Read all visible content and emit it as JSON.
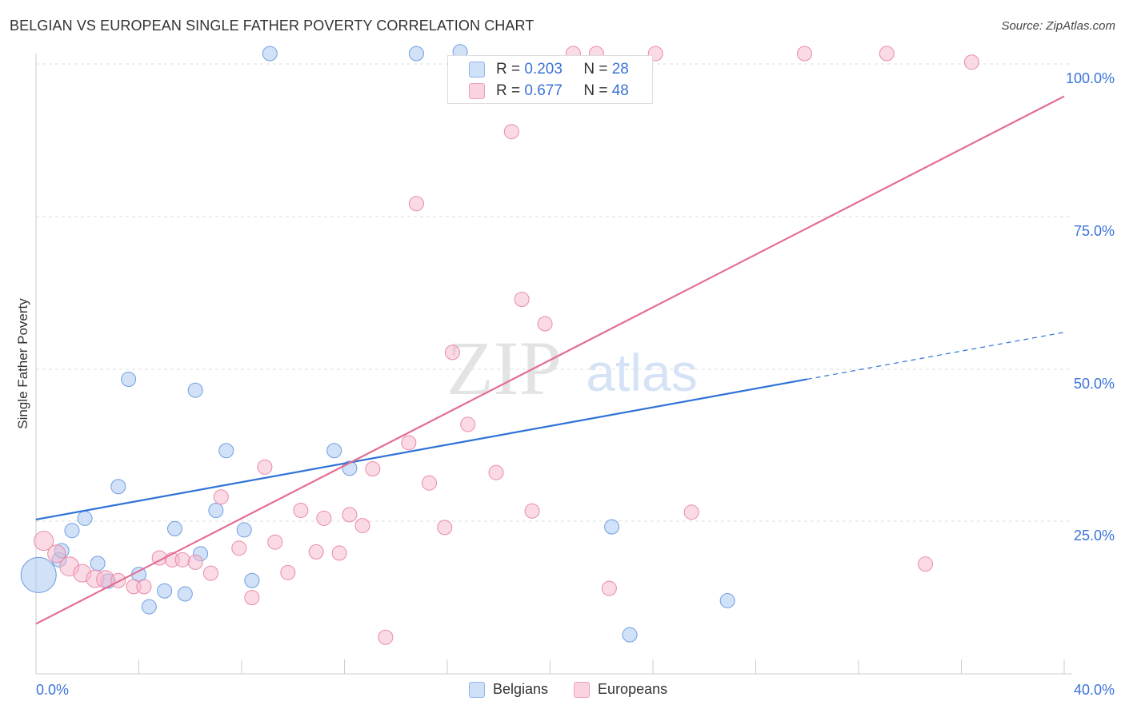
{
  "header": {
    "title": "BELGIAN VS EUROPEAN SINGLE FATHER POVERTY CORRELATION CHART",
    "source": "Source: ZipAtlas.com"
  },
  "watermark": {
    "zip": "ZIP",
    "atlas": "atlas"
  },
  "stats": [
    {
      "r_label": "R = ",
      "r_value": "0.203",
      "n_label": "N = ",
      "n_value": "28",
      "color": "#a9c8f3"
    },
    {
      "r_label": "R = ",
      "r_value": "0.677",
      "n_label": "N = ",
      "n_value": "48",
      "color": "#f6b8cb"
    }
  ],
  "legend": [
    {
      "label": "Belgians",
      "color": "#a9c8f3"
    },
    {
      "label": "Europeans",
      "color": "#f6b8cb"
    }
  ],
  "chart_data": {
    "type": "scatter",
    "ylabel": "Single Father Poverty",
    "xlim": [
      0,
      40
    ],
    "ylim": [
      0,
      100
    ],
    "x_tick_labels": [
      "0.0%",
      "40.0%"
    ],
    "y_tick_labels": [
      "25.0%",
      "50.0%",
      "75.0%",
      "100.0%"
    ],
    "y_ticks": [
      25,
      50,
      75,
      100
    ],
    "grid": true,
    "series": [
      {
        "name": "Belgians",
        "color": "#a9c8f3",
        "stroke": "#6f9fe0",
        "line_color": "#2f72d6",
        "trend": {
          "x": [
            0,
            30
          ],
          "y": [
            25.3,
            48.3
          ],
          "dashed_to": [
            40,
            56
          ]
        },
        "points": [
          [
            0.1,
            16.2,
            22
          ],
          [
            0.9,
            18.7,
            9
          ],
          [
            1.0,
            20.2,
            9
          ],
          [
            1.4,
            23.5,
            9
          ],
          [
            1.9,
            25.5,
            9
          ],
          [
            2.4,
            18.1,
            9
          ],
          [
            2.8,
            15.2,
            9
          ],
          [
            3.2,
            30.7,
            9
          ],
          [
            3.6,
            48.3,
            9
          ],
          [
            4.0,
            16.3,
            9
          ],
          [
            4.4,
            11.0,
            9
          ],
          [
            5.0,
            13.6,
            9
          ],
          [
            5.4,
            23.8,
            9
          ],
          [
            5.8,
            13.1,
            9
          ],
          [
            6.2,
            46.5,
            9
          ],
          [
            6.4,
            19.7,
            9
          ],
          [
            7.0,
            26.8,
            9
          ],
          [
            7.4,
            36.6,
            9
          ],
          [
            8.1,
            23.6,
            9
          ],
          [
            8.4,
            15.3,
            9
          ],
          [
            9.1,
            101.7,
            9
          ],
          [
            11.6,
            36.6,
            9
          ],
          [
            12.2,
            33.7,
            9
          ],
          [
            14.8,
            101.7,
            9
          ],
          [
            16.5,
            102.0,
            9
          ],
          [
            22.4,
            24.1,
            9
          ],
          [
            23.1,
            6.4,
            9
          ],
          [
            26.9,
            12.0,
            9
          ]
        ]
      },
      {
        "name": "Europeans",
        "color": "#f6b8cb",
        "stroke": "#ea8aa6",
        "line_color": "#e46d93",
        "trend": {
          "x": [
            0,
            40
          ],
          "y": [
            8.2,
            94.7
          ]
        },
        "points": [
          [
            0.3,
            21.8,
            12
          ],
          [
            0.8,
            19.7,
            11
          ],
          [
            1.3,
            17.6,
            12
          ],
          [
            1.8,
            16.5,
            11
          ],
          [
            2.3,
            15.6,
            11
          ],
          [
            2.7,
            15.5,
            11
          ],
          [
            3.2,
            15.3,
            9
          ],
          [
            3.8,
            14.3,
            9
          ],
          [
            4.2,
            14.3,
            9
          ],
          [
            4.8,
            19.0,
            9
          ],
          [
            5.3,
            18.7,
            9
          ],
          [
            5.7,
            18.7,
            9
          ],
          [
            6.2,
            18.3,
            9
          ],
          [
            6.8,
            16.5,
            9
          ],
          [
            7.2,
            29.0,
            9
          ],
          [
            7.9,
            20.6,
            9
          ],
          [
            8.4,
            12.5,
            9
          ],
          [
            8.9,
            33.9,
            9
          ],
          [
            9.3,
            21.6,
            9
          ],
          [
            9.8,
            16.6,
            9
          ],
          [
            10.3,
            26.8,
            9
          ],
          [
            10.9,
            20.0,
            9
          ],
          [
            11.2,
            25.5,
            9
          ],
          [
            11.8,
            19.8,
            9
          ],
          [
            12.2,
            26.1,
            9
          ],
          [
            12.7,
            24.3,
            9
          ],
          [
            13.1,
            33.6,
            9
          ],
          [
            13.6,
            6.0,
            9
          ],
          [
            14.5,
            37.9,
            9
          ],
          [
            14.8,
            77.1,
            9
          ],
          [
            15.3,
            31.3,
            9
          ],
          [
            15.9,
            24.0,
            9
          ],
          [
            16.2,
            52.7,
            9
          ],
          [
            16.8,
            40.9,
            9
          ],
          [
            17.9,
            33.0,
            9
          ],
          [
            18.5,
            88.9,
            9
          ],
          [
            18.9,
            61.4,
            9
          ],
          [
            19.3,
            26.7,
            9
          ],
          [
            19.8,
            57.4,
            9
          ],
          [
            20.9,
            101.7,
            9
          ],
          [
            21.8,
            101.7,
            9
          ],
          [
            22.3,
            14.0,
            9
          ],
          [
            24.1,
            101.7,
            9
          ],
          [
            25.5,
            26.5,
            9
          ],
          [
            29.9,
            101.7,
            9
          ],
          [
            33.1,
            101.7,
            9
          ],
          [
            34.6,
            18.0,
            9
          ],
          [
            36.4,
            100.3,
            9
          ]
        ]
      }
    ]
  }
}
